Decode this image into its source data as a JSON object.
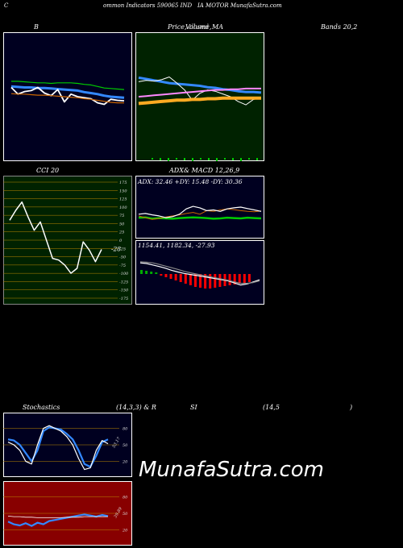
{
  "header": {
    "c": "C",
    "text": "ommon Indicators 590065 IND",
    "text2": "IA MOTOR MunafaSutra.com"
  },
  "labels": {
    "b": "B",
    "price": "Price,",
    "volume": "Volume,",
    "closed": "closed",
    "ma": "MA",
    "bands": "Bands 20,2",
    "cci": "CCI 20",
    "adx": "ADX",
    "macd": "& MACD 12,26,9",
    "stoch": "Stochastics",
    "stoch_params": "(14,3,3) & R",
    "si": "SI",
    "rsi_params": "(14,5",
    "rsi_close": ")"
  },
  "watermark": "MunafaSutra.com",
  "colors": {
    "bb_bg": "#000020",
    "price_bg": "#002200",
    "cci_bg": "#002200",
    "adx_bg": "#000020",
    "stoch_bg": "#000020",
    "rsi_bg": "#880000"
  },
  "chart_data": [
    {
      "name": "Bollinger Bands",
      "type": "line",
      "ylim": [
        0,
        100
      ],
      "series": [
        {
          "color": "#00cc00",
          "values": [
            80,
            80,
            79,
            78,
            77,
            77,
            76,
            77,
            77,
            77,
            76,
            74,
            73,
            70,
            67,
            66,
            65,
            64
          ]
        },
        {
          "color": "#3388ff",
          "values": [
            70,
            69,
            68,
            68,
            67,
            67,
            66,
            65,
            64,
            63,
            62,
            59,
            57,
            55,
            52,
            50,
            49,
            48
          ]
        },
        {
          "color": "#ffffff",
          "values": [
            68,
            55,
            60,
            62,
            68,
            57,
            52,
            64,
            40,
            55,
            50,
            48,
            46,
            38,
            35,
            45,
            43,
            42
          ]
        },
        {
          "color": "#cc6600",
          "values": [
            56,
            55,
            55,
            54,
            53,
            53,
            52,
            51,
            50,
            49,
            48,
            46,
            45,
            43,
            41,
            39,
            38,
            38
          ]
        }
      ]
    },
    {
      "name": "Price MA",
      "type": "line",
      "ylim": [
        0,
        100
      ],
      "series": [
        {
          "color": "#3388ff",
          "values": [
            78,
            76,
            74,
            72,
            70,
            69,
            68,
            67,
            66,
            64,
            63,
            61,
            60,
            58,
            57,
            57,
            56
          ]
        },
        {
          "color": "#ffffff",
          "values": [
            72,
            74,
            73,
            75,
            79,
            70,
            60,
            45,
            55,
            60,
            58,
            54,
            50,
            43,
            38,
            46,
            48
          ]
        },
        {
          "color": "#ff88ff",
          "values": [
            50,
            51,
            52,
            53,
            54,
            55,
            56,
            57,
            58,
            59,
            60,
            60,
            61,
            61,
            62,
            62,
            62
          ]
        },
        {
          "color": "#ffaa22",
          "values": [
            40,
            41,
            42,
            43,
            44,
            45,
            45,
            46,
            46,
            47,
            47,
            48,
            48,
            48,
            48,
            48,
            48
          ]
        }
      ]
    },
    {
      "name": "CCI",
      "type": "line",
      "ylim": [
        -175,
        175
      ],
      "yticks": [
        175,
        150,
        125,
        100,
        75,
        50,
        25,
        0,
        -25,
        -50,
        -75,
        -100,
        -125,
        -150,
        -175
      ],
      "value_label": "-28",
      "values": [
        60,
        90,
        115,
        70,
        30,
        55,
        0,
        -55,
        -60,
        -75,
        -100,
        -85,
        -5,
        -30,
        -65,
        -28
      ]
    },
    {
      "name": "ADX",
      "type": "line",
      "ylim": [
        0,
        100
      ],
      "adx": 32.46,
      "pdi": 15.48,
      "mdi": 30.36,
      "series": [
        {
          "color": "#00cc00",
          "values": [
            30,
            31,
            27,
            29,
            28,
            27,
            29,
            30,
            31,
            30,
            29,
            27,
            28,
            30,
            29,
            28,
            30,
            29,
            28
          ]
        },
        {
          "color": "#cc6600",
          "values": [
            35,
            30,
            25,
            28,
            32,
            35,
            38,
            42,
            45,
            40,
            50,
            48,
            52,
            55,
            53,
            50,
            48,
            47,
            49
          ]
        },
        {
          "color": "#ffffff",
          "values": [
            40,
            42,
            38,
            35,
            30,
            33,
            40,
            55,
            62,
            58,
            50,
            52,
            48,
            55,
            58,
            60,
            56,
            52,
            48
          ]
        }
      ]
    },
    {
      "name": "MACD",
      "type": "bar",
      "macd": 1154.41,
      "signal": 1182.34,
      "hist": -27.93,
      "hist_values": [
        5,
        4,
        3,
        2,
        -2,
        -4,
        -6,
        -8,
        -10,
        -12,
        -14,
        -16,
        -17,
        -18,
        -18,
        -17,
        -16,
        -15,
        -14,
        -13,
        -12,
        -11,
        -10
      ]
    },
    {
      "name": "Stochastics",
      "type": "line",
      "ylim": [
        0,
        100
      ],
      "yticks": [
        80,
        50,
        20
      ],
      "value_label": "53.17",
      "series": [
        {
          "color": "#3388ff",
          "values": [
            60,
            58,
            50,
            35,
            20,
            40,
            75,
            82,
            80,
            78,
            70,
            60,
            40,
            15,
            10,
            30,
            55,
            60
          ]
        },
        {
          "color": "#ffffff",
          "values": [
            55,
            50,
            40,
            20,
            15,
            50,
            80,
            85,
            80,
            75,
            65,
            50,
            25,
            5,
            8,
            40,
            58,
            52
          ]
        }
      ]
    },
    {
      "name": "RSI",
      "type": "line",
      "ylim": [
        0,
        100
      ],
      "yticks": [
        80,
        50,
        20
      ],
      "value_label": "39.89",
      "series": [
        {
          "color": "#3388ff",
          "values": [
            35,
            30,
            28,
            32,
            27,
            33,
            30,
            36,
            38,
            40,
            42,
            44,
            46,
            48,
            46,
            44,
            47,
            45
          ]
        },
        {
          "color": "#ffffff",
          "values": [
            45,
            44,
            44,
            43,
            43,
            42,
            42,
            42,
            42,
            42,
            43,
            43,
            43,
            44,
            44,
            44,
            44,
            44
          ]
        }
      ]
    }
  ]
}
